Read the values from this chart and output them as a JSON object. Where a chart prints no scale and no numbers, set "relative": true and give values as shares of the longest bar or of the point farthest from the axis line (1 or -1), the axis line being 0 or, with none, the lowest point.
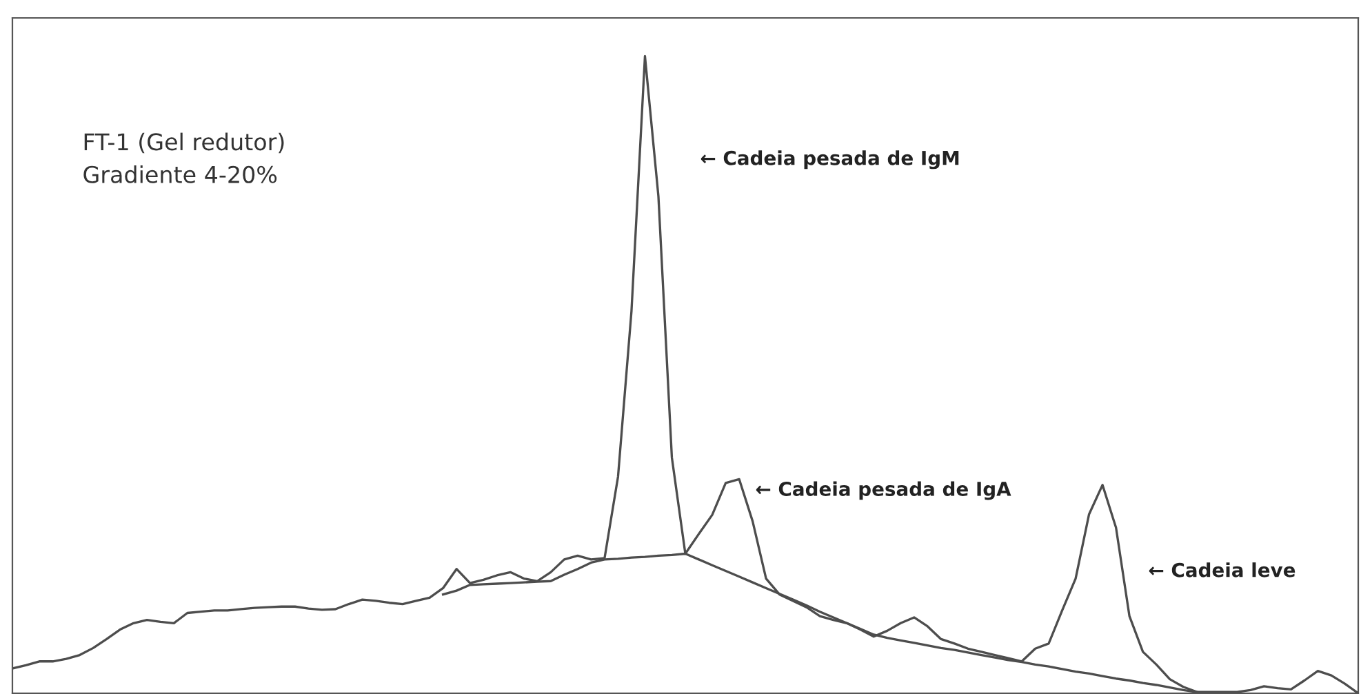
{
  "chart_data": {
    "type": "line",
    "relative": true,
    "line_style": "solid",
    "categories": [
      null,
      null,
      null,
      null,
      null,
      null,
      null,
      null,
      null,
      null,
      null,
      null,
      null,
      null,
      null,
      null,
      null,
      null,
      null,
      null,
      null,
      null,
      null,
      null,
      null,
      null,
      null,
      null,
      null,
      null,
      null,
      null,
      null,
      null,
      null,
      null,
      null,
      null,
      null,
      null,
      null,
      null,
      null,
      null,
      null,
      null,
      null,
      null,
      null,
      null,
      null,
      null,
      null,
      null,
      null,
      null,
      null,
      null,
      null,
      null,
      null,
      null,
      null,
      null,
      null,
      null,
      null,
      null,
      null,
      null,
      null,
      null,
      null,
      null,
      null,
      null,
      null,
      null,
      null,
      null,
      null,
      null,
      null,
      null,
      null,
      null,
      null,
      null,
      null,
      null,
      null,
      null,
      null,
      null,
      null,
      null,
      null,
      null,
      null,
      null,
      null
    ],
    "series": [
      {
        "color": "#4d4d4d",
        "values": [
          0.039,
          0.044,
          0.05,
          0.05,
          0.054,
          0.06,
          0.071,
          0.085,
          0.1,
          0.11,
          0.115,
          0.112,
          0.11,
          0.126,
          0.128,
          0.13,
          0.13,
          0.132,
          0.134,
          0.135,
          0.136,
          0.136,
          0.133,
          0.131,
          0.132,
          0.14,
          0.147,
          0.145,
          0.142,
          0.14,
          0.145,
          0.15,
          0.165,
          0.195,
          0.173,
          0.178,
          0.185,
          0.19,
          0.18,
          0.176,
          0.19,
          0.21,
          0.216,
          0.21,
          0.212,
          0.34,
          0.6,
          1.0,
          0.78,
          0.37,
          0.219,
          0.25,
          0.28,
          0.33,
          0.336,
          0.27,
          0.18,
          0.155,
          0.145,
          0.135,
          0.121,
          0.115,
          0.11,
          0.1,
          0.089,
          0.098,
          0.11,
          0.119,
          0.105,
          0.085,
          0.078,
          0.07,
          0.065,
          0.06,
          0.055,
          0.05,
          0.07,
          0.078,
          0.13,
          0.18,
          0.281,
          0.327,
          0.26,
          0.121,
          0.065,
          0.045,
          0.022,
          0.01,
          0.002,
          0.002,
          0.002,
          0.002,
          0.005,
          0.011,
          0.008,
          0.006,
          0.02,
          0.035,
          0.028,
          0.015,
          0
        ]
      },
      {
        "color": "#4d4d4d",
        "values": [
          null,
          null,
          null,
          null,
          null,
          null,
          null,
          null,
          null,
          null,
          null,
          null,
          null,
          null,
          null,
          null,
          null,
          null,
          null,
          null,
          null,
          null,
          null,
          null,
          null,
          null,
          null,
          null,
          null,
          null,
          null,
          null,
          0.155,
          0.161,
          0.17,
          0.171,
          0.172,
          0.173,
          0.174,
          0.175,
          0.176,
          0.186,
          0.195,
          0.205,
          0.21,
          0.211,
          0.213,
          0.214,
          0.216,
          0.217,
          0.219,
          0.21,
          0.201,
          0.192,
          0.183,
          0.174,
          0.165,
          0.156,
          0.147,
          0.138,
          0.128,
          0.119,
          0.11,
          0.101,
          0.092,
          0.087,
          0.083,
          0.079,
          0.075,
          0.071,
          0.068,
          0.064,
          0.06,
          0.056,
          0.052,
          0.049,
          0.045,
          0.042,
          0.038,
          0.034,
          0.031,
          0.027,
          0.023,
          0.02,
          0.016,
          0.013,
          0.009,
          0.005,
          0.002,
          null,
          null,
          null,
          null,
          null,
          null,
          null,
          null,
          null,
          null,
          null,
          null
        ]
      }
    ],
    "annotations": [
      "FT-1 (Gel redutor)\nGradiente 4-20%",
      "← Cadeia pesada de IgM",
      "← Cadeia pesada de IgA",
      "← Cadeia leve"
    ]
  }
}
